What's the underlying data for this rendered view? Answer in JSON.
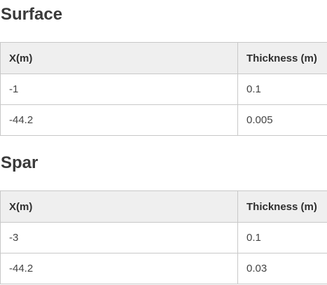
{
  "sections": [
    {
      "title": "Surface",
      "columns": [
        "X(m)",
        "Thickness (m)"
      ],
      "rows": [
        [
          "-1",
          "0.1"
        ],
        [
          "-44.2",
          "0.005"
        ]
      ]
    },
    {
      "title": "Spar",
      "columns": [
        "X(m)",
        "Thickness (m)"
      ],
      "rows": [
        [
          "-3",
          "0.1"
        ],
        [
          "-44.2",
          "0.03"
        ]
      ]
    }
  ]
}
